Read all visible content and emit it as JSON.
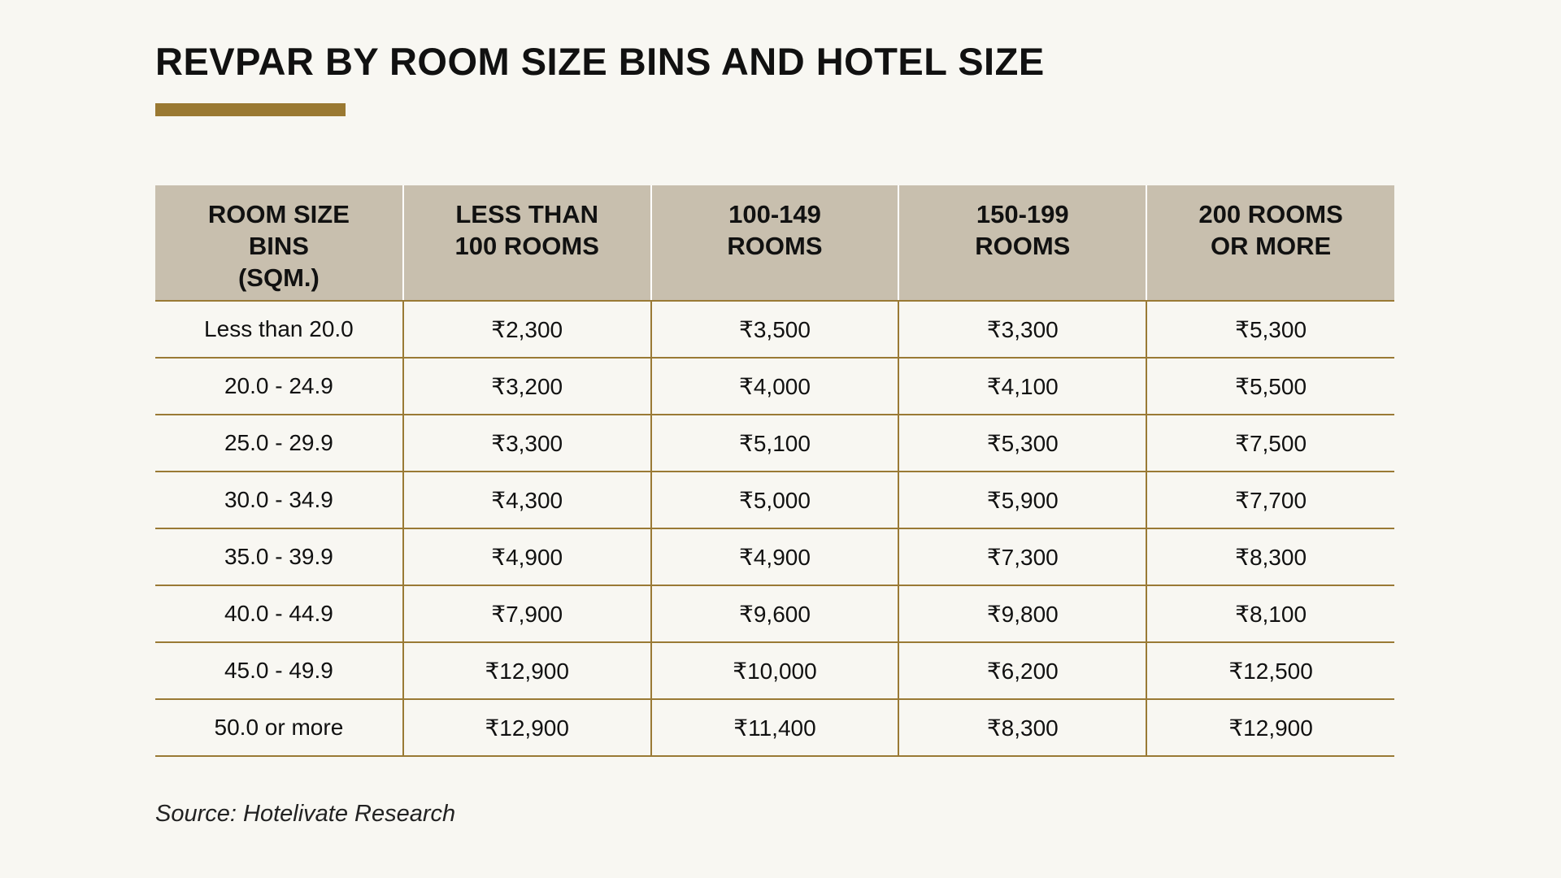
{
  "title": "REVPAR BY ROOM SIZE BINS AND HOTEL SIZE",
  "colors": {
    "background": "#f8f7f2",
    "accent": "#9a7932",
    "header_background": "#c8bfae",
    "grid_lines": "#9a7a35"
  },
  "table": {
    "headers": [
      [
        "ROOM SIZE",
        "BINS",
        "(SQM.)"
      ],
      [
        "LESS THAN",
        "100 ROOMS"
      ],
      [
        "100-149",
        "ROOMS"
      ],
      [
        "150-199",
        "ROOMS"
      ],
      [
        "200 ROOMS",
        "OR MORE"
      ]
    ],
    "rows": [
      [
        "Less than 20.0",
        "₹2,300",
        "₹3,500",
        "₹3,300",
        "₹5,300"
      ],
      [
        "20.0 - 24.9",
        "₹3,200",
        "₹4,000",
        "₹4,100",
        "₹5,500"
      ],
      [
        "25.0 - 29.9",
        "₹3,300",
        "₹5,100",
        "₹5,300",
        "₹7,500"
      ],
      [
        "30.0 - 34.9",
        "₹4,300",
        "₹5,000",
        "₹5,900",
        "₹7,700"
      ],
      [
        "35.0 - 39.9",
        "₹4,900",
        "₹4,900",
        "₹7,300",
        "₹8,300"
      ],
      [
        "40.0 - 44.9",
        "₹7,900",
        "₹9,600",
        "₹9,800",
        "₹8,100"
      ],
      [
        "45.0 - 49.9",
        "₹12,900",
        "₹10,000",
        "₹6,200",
        "₹12,500"
      ],
      [
        "50.0 or more",
        "₹12,900",
        "₹11,400",
        "₹8,300",
        "₹12,900"
      ]
    ]
  },
  "source": "Source: Hotelivate Research"
}
